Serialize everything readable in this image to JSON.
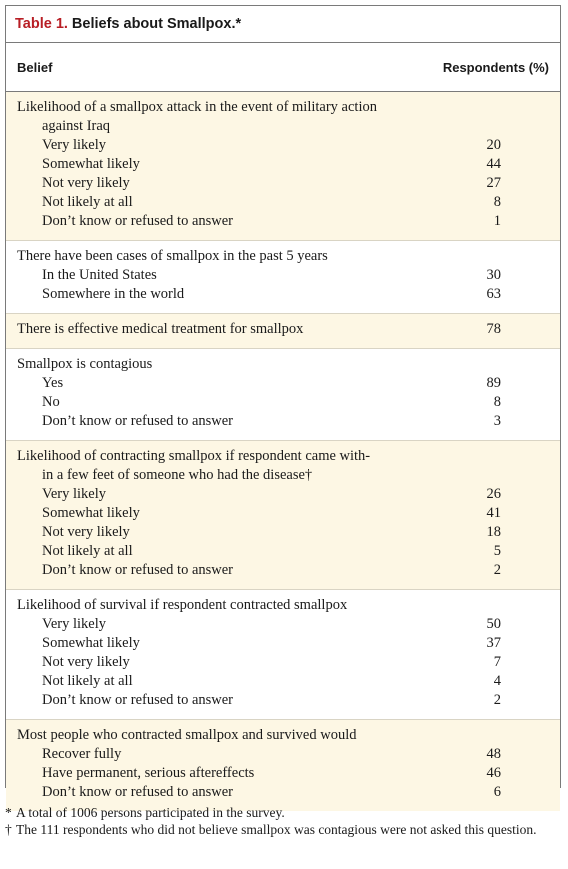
{
  "title": {
    "number": "Table 1.",
    "text": "Beliefs about Smallpox.*"
  },
  "columns": {
    "belief": "Belief",
    "respondents": "Respondents (%)"
  },
  "sections": [
    {
      "question": "Likelihood of a smallpox attack in the event of military action",
      "question_cont": "against Iraq",
      "value": "",
      "items": [
        {
          "label": "Very likely",
          "value": "20"
        },
        {
          "label": "Somewhat likely",
          "value": "44"
        },
        {
          "label": "Not very likely",
          "value": "27"
        },
        {
          "label": "Not likely at all",
          "value": "8"
        },
        {
          "label": "Don’t know or refused to answer",
          "value": "1"
        }
      ]
    },
    {
      "question": "There have been cases of smallpox in the past 5 years",
      "question_cont": "",
      "value": "",
      "items": [
        {
          "label": "In the United States",
          "value": "30"
        },
        {
          "label": "Somewhere in the world",
          "value": "63"
        }
      ]
    },
    {
      "question": "There is effective medical treatment for smallpox",
      "question_cont": "",
      "value": "78",
      "items": []
    },
    {
      "question": "Smallpox is contagious",
      "question_cont": "",
      "value": "",
      "items": [
        {
          "label": "Yes",
          "value": "89"
        },
        {
          "label": "No",
          "value": "8"
        },
        {
          "label": "Don’t know or refused to answer",
          "value": "3"
        }
      ]
    },
    {
      "question": "Likelihood of contracting smallpox if respondent came with-",
      "question_cont": "in a few feet of someone who had the disease†",
      "value": "",
      "items": [
        {
          "label": "Very likely",
          "value": "26"
        },
        {
          "label": "Somewhat likely",
          "value": "41"
        },
        {
          "label": "Not very likely",
          "value": "18"
        },
        {
          "label": "Not likely at all",
          "value": "5"
        },
        {
          "label": "Don’t know or refused to answer",
          "value": "2"
        }
      ]
    },
    {
      "question": "Likelihood of survival if respondent contracted smallpox",
      "question_cont": "",
      "value": "",
      "items": [
        {
          "label": "Very likely",
          "value": "50"
        },
        {
          "label": "Somewhat likely",
          "value": "37"
        },
        {
          "label": "Not very likely",
          "value": "7"
        },
        {
          "label": "Not likely at all",
          "value": "4"
        },
        {
          "label": "Don’t know or refused to answer",
          "value": "2"
        }
      ]
    },
    {
      "question": "Most people who contracted smallpox and survived would",
      "question_cont": "",
      "value": "",
      "items": [
        {
          "label": "Recover fully",
          "value": "48"
        },
        {
          "label": "Have permanent, serious aftereffects",
          "value": "46"
        },
        {
          "label": "Don’t know or refused to answer",
          "value": "6"
        }
      ]
    }
  ],
  "footnotes": [
    {
      "mark": "*",
      "text": "A total of 1006 persons participated in the survey."
    },
    {
      "mark": "†",
      "text": "The 111 respondents who did not believe smallpox was contagious were not asked this question."
    }
  ]
}
